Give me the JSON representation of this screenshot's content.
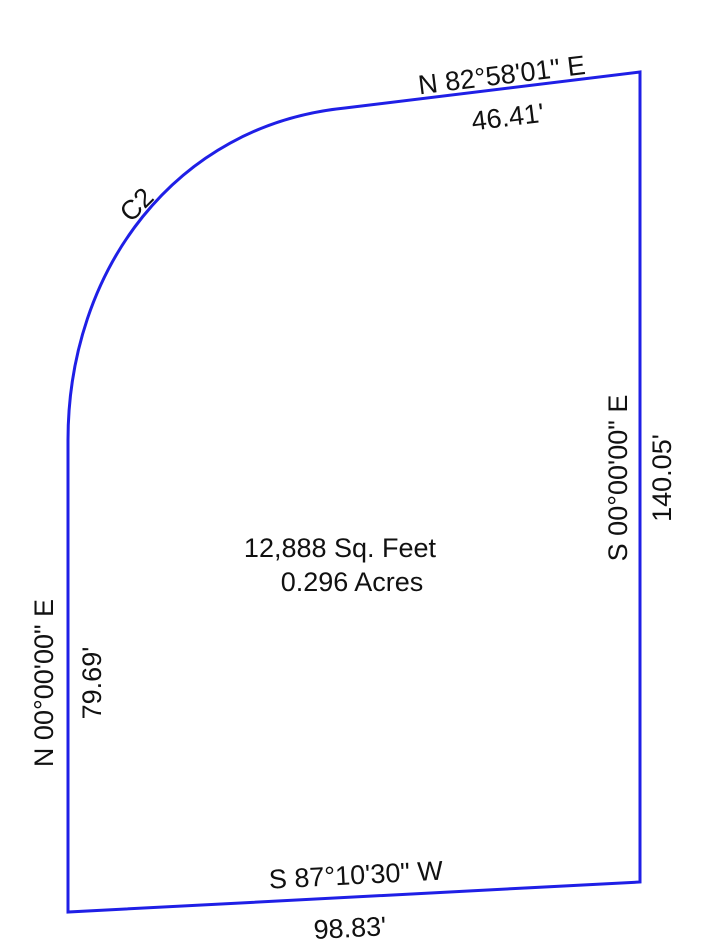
{
  "curve": {
    "label": "C2"
  },
  "lines": [
    {
      "bearing": "N 82°58'01\" E",
      "distance": "46.41'"
    },
    {
      "bearing": "S 00°00'00\" E",
      "distance": "140.05'"
    },
    {
      "bearing": "S 87°10'30\" W",
      "distance": "98.83'"
    },
    {
      "bearing": "N 00°00'00\" E",
      "distance": "79.69'"
    }
  ],
  "area": {
    "square_feet": "12,888 Sq. Feet",
    "acres": "0.296 Acres"
  }
}
